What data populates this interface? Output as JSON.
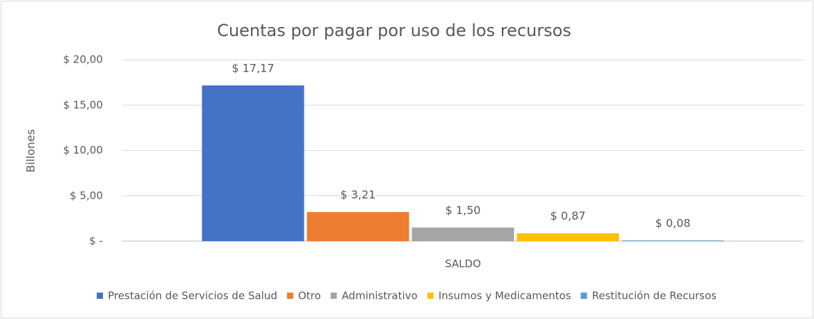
{
  "chart_data": {
    "type": "bar",
    "title": "Cuentas por pagar por uso de los recursos",
    "ylabel": "Billones",
    "categories": [
      "SALDO"
    ],
    "series": [
      {
        "name": "Prestación de Servicios de Salud",
        "color": "#4472c4",
        "values": [
          17.17
        ],
        "value_labels": [
          "$ 17,17"
        ]
      },
      {
        "name": "Otro",
        "color": "#ed7d31",
        "values": [
          3.21
        ],
        "value_labels": [
          "$ 3,21"
        ]
      },
      {
        "name": "Administrativo",
        "color": "#a5a5a5",
        "values": [
          1.5
        ],
        "value_labels": [
          "$ 1,50"
        ]
      },
      {
        "name": "Insumos y Medicamentos",
        "color": "#ffc000",
        "values": [
          0.87
        ],
        "value_labels": [
          "$ 0,87"
        ]
      },
      {
        "name": "Restitución de Recursos",
        "color": "#5b9bd5",
        "values": [
          0.08
        ],
        "value_labels": [
          "$ 0,08"
        ]
      }
    ],
    "ylim": [
      0,
      20
    ],
    "yticks": [
      {
        "value": 0,
        "label": "$ -"
      },
      {
        "value": 5,
        "label": "$ 5,00"
      },
      {
        "value": 10,
        "label": "$ 10,00"
      },
      {
        "value": 15,
        "label": "$ 15,00"
      },
      {
        "value": 20,
        "label": "$ 20,00"
      }
    ],
    "grid": true,
    "legend": "bottom"
  }
}
